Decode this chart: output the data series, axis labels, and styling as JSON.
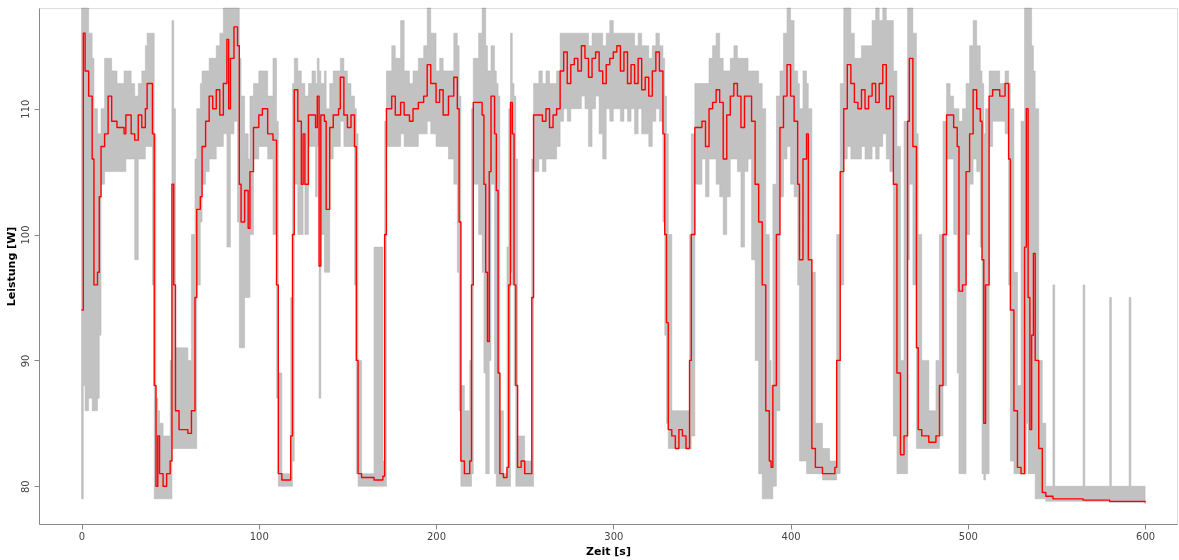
{
  "chart_data": {
    "type": "step",
    "xlabel": "Zeit [s]",
    "ylabel": "Leistung [W]",
    "xlim": [
      -24,
      618
    ],
    "ylim": [
      77,
      118
    ],
    "xticks": [
      0,
      100,
      200,
      300,
      400,
      500,
      600
    ],
    "yticks": [
      80,
      90,
      100,
      110
    ],
    "grid": false,
    "line_style": "solid",
    "marker": "none",
    "x": [
      0,
      1,
      2,
      4,
      6,
      7,
      9,
      10,
      11,
      13,
      15,
      17,
      20,
      24,
      25,
      28,
      30,
      32,
      34,
      36,
      37,
      40,
      41,
      42,
      43,
      44,
      46,
      48,
      50,
      51,
      52,
      53,
      55,
      60,
      62,
      64,
      65,
      67,
      68,
      70,
      72,
      74,
      76,
      78,
      80,
      82,
      83,
      84,
      86,
      88,
      89,
      90,
      92,
      94,
      95,
      97,
      100,
      102,
      105,
      108,
      110,
      111,
      113,
      117,
      118,
      119,
      120,
      122,
      124,
      125,
      126,
      128,
      130,
      132,
      133,
      134,
      135,
      137,
      138,
      140,
      142,
      145,
      146,
      148,
      150,
      152,
      154,
      155,
      156,
      158,
      165,
      170,
      171,
      172,
      175,
      177,
      180,
      182,
      185,
      187,
      190,
      193,
      195,
      197,
      200,
      202,
      204,
      207,
      210,
      212,
      213,
      214,
      216,
      219,
      220,
      221,
      224,
      226,
      227,
      228,
      229,
      230,
      231,
      233,
      234,
      235,
      236,
      238,
      240,
      241,
      242,
      243,
      244,
      245,
      246,
      248,
      250,
      253,
      254,
      255,
      258,
      260,
      262,
      264,
      266,
      268,
      270,
      272,
      274,
      276,
      278,
      280,
      282,
      284,
      286,
      288,
      290,
      292,
      294,
      296,
      298,
      300,
      302,
      304,
      306,
      308,
      310,
      312,
      314,
      316,
      318,
      320,
      322,
      324,
      326,
      328,
      329,
      330,
      331,
      333,
      335,
      337,
      339,
      341,
      343,
      344,
      346,
      350,
      352,
      354,
      356,
      358,
      360,
      362,
      364,
      366,
      368,
      370,
      372,
      374,
      376,
      378,
      380,
      382,
      384,
      386,
      388,
      389,
      390,
      392,
      394,
      396,
      398,
      400,
      402,
      404,
      405,
      407,
      409,
      410,
      412,
      414,
      418,
      422,
      425,
      426,
      428,
      430,
      432,
      434,
      436,
      438,
      440,
      442,
      444,
      446,
      448,
      450,
      452,
      454,
      456,
      458,
      460,
      462,
      464,
      466,
      467,
      469,
      471,
      472,
      474,
      478,
      482,
      484,
      486,
      488,
      490,
      492,
      494,
      495,
      497,
      499,
      501,
      503,
      505,
      507,
      508,
      509,
      510,
      512,
      514,
      518,
      521,
      523,
      524,
      526,
      528,
      530,
      532,
      533,
      534,
      535,
      536,
      537,
      538,
      540,
      542,
      544,
      548,
      549,
      565,
      566,
      580,
      581,
      591,
      592,
      600
    ],
    "series": [
      {
        "color": "#ff0000",
        "values": [
          94,
          116,
          113,
          111,
          106,
          96,
          97,
          103,
          107,
          108,
          111,
          109,
          108.5,
          108,
          109.5,
          108,
          107.5,
          109.5,
          108.5,
          110,
          112,
          108,
          88,
          80,
          84,
          81,
          80,
          81,
          82,
          104,
          96,
          86,
          84.5,
          84.2,
          86,
          95,
          102,
          103,
          107,
          109,
          111,
          110,
          111.5,
          109.5,
          112,
          115.5,
          110,
          114,
          116.5,
          115,
          104,
          101,
          103.5,
          100.5,
          105,
          108.5,
          109.5,
          110,
          108,
          107.5,
          96,
          81,
          80.5,
          80.5,
          84,
          100,
          111.5,
          109,
          104,
          108,
          104,
          109.5,
          109.5,
          108.5,
          111,
          97.5,
          109.5,
          109,
          102,
          108.5,
          109.5,
          110,
          112.5,
          109.5,
          108.5,
          109.5,
          107,
          90,
          81,
          80.7,
          80.5,
          80.8,
          100,
          110,
          111,
          109.5,
          110.5,
          109.5,
          109,
          110,
          110.5,
          111,
          113.5,
          112,
          110.5,
          111.5,
          109.5,
          111,
          112.5,
          110,
          101,
          82,
          81,
          82,
          96,
          110.5,
          110.5,
          109.5,
          104,
          97,
          91.5,
          105,
          111,
          108,
          103.5,
          89,
          81,
          80.7,
          81.5,
          96,
          110.5,
          108,
          96,
          88,
          81.5,
          82,
          81,
          81,
          95,
          109.5,
          109.5,
          109,
          110,
          108.5,
          109.5,
          110,
          113,
          114.5,
          112,
          113.5,
          114,
          113,
          115,
          114,
          112.5,
          114,
          114.5,
          113,
          112,
          113.5,
          114,
          114.5,
          115,
          113,
          114.5,
          112,
          113.5,
          112,
          114,
          111.5,
          112.5,
          111,
          113,
          114.5,
          113,
          108,
          100,
          93,
          84.5,
          84,
          83,
          84.5,
          84,
          83,
          90,
          100,
          108.5,
          109,
          107,
          110,
          110.5,
          111.5,
          110.5,
          106,
          109.5,
          111,
          112,
          111,
          108.5,
          111,
          111,
          109,
          104,
          101,
          96,
          86,
          82,
          81.5,
          88,
          100,
          108.5,
          111,
          113.5,
          111,
          109,
          104,
          98,
          106,
          108,
          98,
          83,
          81.5,
          81,
          81,
          81.5,
          90,
          105,
          110,
          113.5,
          112,
          110.5,
          110,
          111.5,
          110,
          111,
          112,
          110.5,
          112,
          113.5,
          110,
          111,
          104,
          89,
          82.5,
          84,
          109,
          114,
          107,
          91,
          84.5,
          84,
          83.5,
          84,
          88,
          100,
          109.5,
          109.5,
          108.5,
          107,
          95.5,
          96,
          105,
          108,
          111.5,
          110,
          109,
          98,
          85,
          96,
          111,
          111.5,
          111,
          112,
          106,
          94,
          86,
          81.5,
          81,
          99,
          110,
          95,
          84.5,
          92,
          98.5,
          90,
          83,
          79.5,
          79.2,
          79,
          79,
          78.9,
          78.9,
          78.8,
          78.8,
          78.8,
          78.8,
          78.7
        ],
        "lower": [
          79,
          88,
          86,
          87,
          86,
          86,
          87,
          92,
          104,
          105,
          105,
          105,
          105,
          105,
          106,
          106,
          98,
          106,
          106,
          107,
          107,
          96,
          79,
          79,
          79,
          79,
          79,
          79,
          79,
          83,
          83,
          83,
          83,
          83,
          83,
          83,
          96,
          101,
          104,
          105,
          106,
          106,
          107,
          107,
          108,
          99,
          99,
          108,
          109,
          101,
          91,
          91,
          95,
          95,
          100,
          106,
          107,
          107,
          106,
          100,
          87,
          80,
          80,
          80,
          80,
          82,
          104,
          100,
          100,
          104,
          100,
          107,
          107,
          103,
          107,
          87,
          100,
          97,
          97,
          106,
          107,
          107,
          109,
          107,
          107,
          107,
          96,
          81,
          80,
          80,
          80,
          80,
          80,
          107,
          107,
          107,
          108,
          107,
          107,
          107,
          108,
          108,
          109,
          108,
          107,
          107,
          107,
          106,
          104,
          97,
          86,
          80,
          80,
          80,
          81,
          104,
          100,
          97,
          89,
          81,
          81,
          90,
          104,
          81,
          80,
          80,
          80,
          80,
          80,
          80,
          97,
          96,
          88,
          80,
          80,
          80,
          80,
          80,
          80,
          105,
          106,
          105,
          106,
          106,
          106,
          107,
          109,
          110,
          109,
          110,
          110,
          110,
          111,
          110,
          107,
          110,
          111,
          108,
          106,
          110,
          109,
          110,
          110,
          109,
          110,
          109,
          110,
          108,
          110,
          108,
          108,
          107,
          109,
          110,
          109,
          101,
          92,
          85,
          83,
          83,
          83,
          83,
          83,
          83,
          83,
          84,
          104,
          106,
          103,
          106,
          106,
          104,
          103,
          100,
          103,
          106,
          106,
          105,
          99,
          105,
          106,
          98,
          90,
          81,
          79,
          79,
          79,
          79,
          80,
          86,
          103,
          106,
          107,
          104,
          103,
          96,
          82,
          82,
          81,
          81,
          81,
          81,
          80.5,
          80.5,
          80.5,
          81,
          96,
          106,
          107,
          106,
          106,
          106,
          107,
          106,
          106,
          107,
          106,
          107,
          108,
          106,
          105,
          84,
          81,
          81,
          81,
          98,
          104,
          96,
          83,
          83,
          83,
          83,
          83,
          84,
          88,
          106,
          106,
          100,
          89,
          81,
          81,
          100,
          104,
          106,
          105,
          99,
          81,
          80.5,
          81,
          107,
          109,
          109,
          108,
          96,
          82,
          81,
          81,
          81,
          81,
          85,
          81,
          81,
          81,
          81,
          79,
          79,
          79,
          78.8,
          78.8,
          78.8,
          78.8,
          78.8,
          78.7,
          78.7,
          78.7,
          78.7,
          78.6
        ],
        "upper": [
          118,
          118,
          118,
          116,
          114,
          110,
          108,
          108,
          110,
          114,
          114,
          113,
          112,
          113,
          113,
          112,
          111,
          112,
          113,
          115,
          116,
          116,
          108,
          87,
          86,
          85,
          84,
          84,
          90,
          117,
          110,
          91,
          91,
          90,
          100,
          106,
          110,
          112,
          113,
          113,
          114,
          114,
          115,
          116,
          118,
          118,
          118,
          118,
          118,
          118,
          114,
          111,
          108,
          106,
          111,
          112,
          113,
          113,
          111,
          114,
          109,
          89,
          81,
          81,
          95,
          112,
          114,
          113,
          112,
          112,
          111,
          112,
          113,
          112,
          114,
          113,
          112,
          113,
          110,
          112,
          113,
          113,
          114,
          113,
          112,
          111,
          110,
          108,
          90,
          81,
          99,
          82,
          109,
          113,
          115,
          114,
          117,
          113,
          112,
          113,
          114,
          115,
          118,
          116,
          113,
          114,
          113,
          113,
          116,
          115,
          111,
          88,
          86,
          90,
          110,
          114,
          116,
          118,
          118,
          115,
          113,
          113,
          115,
          113,
          112,
          111,
          86,
          81,
          99,
          110,
          116,
          112,
          111,
          106,
          84,
          84,
          82,
          82,
          106,
          112,
          113,
          112,
          113,
          112,
          112,
          113,
          116,
          116,
          116,
          116,
          116,
          116,
          116,
          116,
          115,
          116,
          116,
          116,
          115,
          116,
          117,
          116,
          116,
          116,
          116,
          116,
          116,
          115,
          116,
          115,
          115,
          114,
          115,
          116,
          115,
          114,
          111,
          108,
          100,
          86,
          86,
          86,
          86,
          86,
          100,
          108,
          112,
          112,
          112,
          114,
          115,
          116,
          114,
          113,
          113,
          114,
          115,
          114,
          114,
          114,
          113,
          113,
          113,
          112,
          110,
          100,
          90,
          88,
          104,
          111,
          113,
          116,
          118,
          117,
          113,
          112,
          110,
          113,
          112,
          110,
          97,
          85,
          83,
          82,
          82,
          100,
          112,
          118,
          118,
          116,
          114,
          114,
          115,
          115,
          115,
          117,
          118,
          117,
          118,
          117,
          117,
          113,
          107,
          90,
          109,
          118,
          118,
          116,
          108,
          100,
          90,
          86,
          90,
          100,
          109,
          112,
          111,
          110,
          110,
          109,
          110,
          112,
          115,
          117,
          115,
          113,
          112,
          108,
          110,
          113,
          113,
          112,
          113,
          112,
          110,
          97,
          88,
          109,
          118,
          118,
          118,
          118,
          115,
          113,
          110,
          90,
          85,
          80,
          96,
          80,
          96,
          80,
          95,
          80,
          95,
          80,
          79
        ]
      }
    ]
  }
}
